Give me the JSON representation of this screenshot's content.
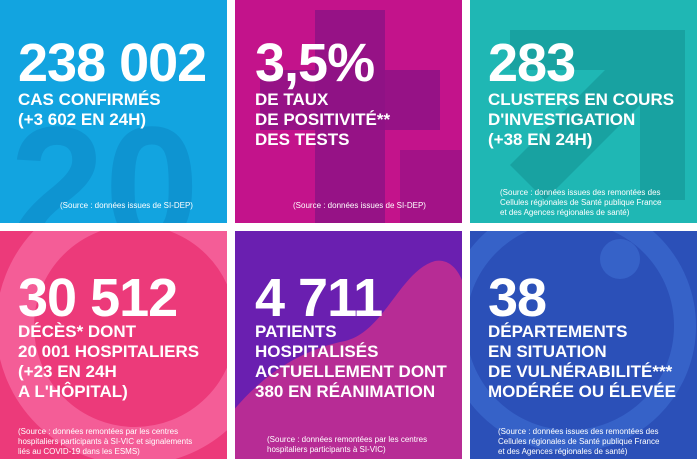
{
  "tiles": [
    {
      "number": "238 002",
      "label_lines": [
        "CAS CONFIRMÉS",
        "(+3 602 EN 24H)"
      ],
      "source_lines": [
        "(Source : données issues de SI-DEP)"
      ],
      "color": "#12a4e0"
    },
    {
      "number": "3,5%",
      "label_lines": [
        "DE TAUX",
        "DE POSITIVITÉ**",
        "DES TESTS"
      ],
      "source_lines": [
        "(Source : données issues de SI-DEP)"
      ],
      "color": "#c3138b"
    },
    {
      "number": "283",
      "label_lines": [
        "CLUSTERS EN COURS",
        "D'INVESTIGATION",
        "(+38 EN 24H)"
      ],
      "source_lines": [
        "(Source : données issues des remontées des",
        "Cellules régionales de Santé publique France",
        "et des Agences régionales de santé)"
      ],
      "color": "#1fb7b4"
    },
    {
      "number": "30 512",
      "label_lines": [
        "DÉCÈS* DONT",
        "20 001 HOSPITALIERS",
        "(+23 EN 24H",
        "A L'HÔPITAL)"
      ],
      "source_lines": [
        "(Source : données remontées par les centres",
        "hospitaliers participants à SI-VIC et signalements",
        "liés au COVID-19 dans les ESMS)"
      ],
      "color": "#ec3a7a"
    },
    {
      "number": "4 711",
      "label_lines": [
        "PATIENTS",
        "HOSPITALISÉS",
        "ACTUELLEMENT DONT",
        "380 EN RÉANIMATION"
      ],
      "source_lines": [
        "(Source : données remontées par les centres",
        "hospitaliers participants à SI-VIC)"
      ],
      "color": "#6a1fb0"
    },
    {
      "number": "38",
      "label_lines": [
        "DÉPARTEMENTS",
        "EN SITUATION",
        "DE VULNÉRABILITÉ***",
        "MODÉRÉE OU ÉLEVÉE"
      ],
      "source_lines": [
        "(Source : données issues des remontées des",
        "Cellules régionales de Santé publique France",
        "et des Agences régionales de santé)"
      ],
      "color": "#2b50b8"
    }
  ]
}
